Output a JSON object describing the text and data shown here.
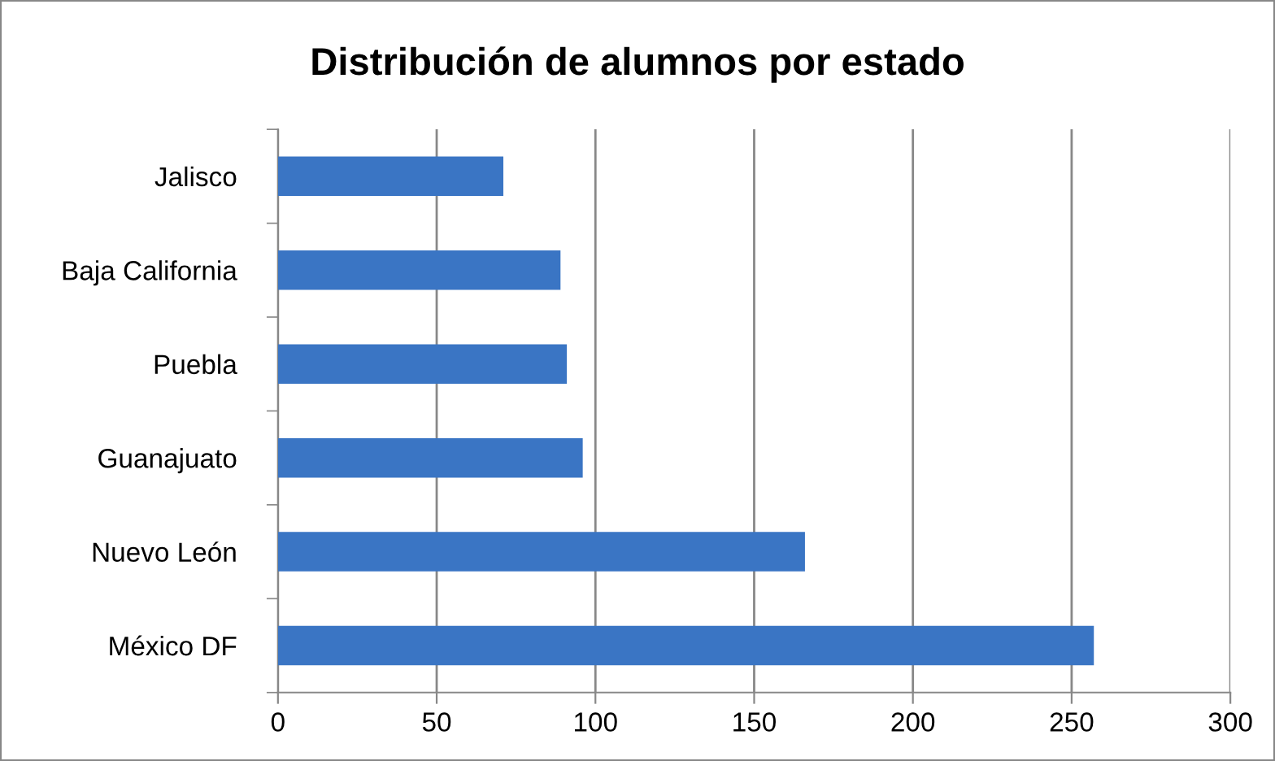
{
  "chart_data": {
    "type": "bar",
    "orientation": "horizontal",
    "title": "Distribución de alumnos por estado",
    "categories": [
      "Jalisco",
      "Baja California",
      "Puebla",
      "Guanajuato",
      "Nuevo León",
      "México DF"
    ],
    "values": [
      71,
      89,
      91,
      96,
      166,
      257
    ],
    "color": "#3a75c4",
    "xlim": [
      0,
      300
    ],
    "xticks": [
      0,
      50,
      100,
      150,
      200,
      250,
      300
    ],
    "grid": "x",
    "legend": false
  }
}
